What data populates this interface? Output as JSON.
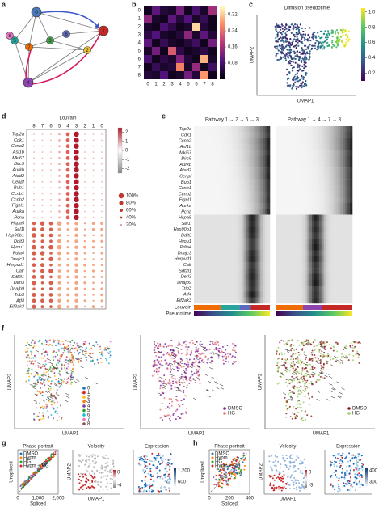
{
  "a": {
    "letter": "a",
    "nodes": [
      "0",
      "1",
      "2",
      "3",
      "4",
      "5",
      "6",
      "7",
      "8"
    ]
  },
  "b": {
    "letter": "b",
    "rows": [
      "0",
      "1",
      "2",
      "3",
      "4",
      "5",
      "6",
      "7",
      "8"
    ],
    "cols": [
      "0",
      "1",
      "2",
      "3",
      "4",
      "5",
      "6",
      "7",
      "8"
    ],
    "matrix": [
      [
        0.02,
        0.1,
        0.04,
        0.03,
        0.12,
        0.02,
        0.08,
        0.03,
        0.16
      ],
      [
        0.14,
        0.03,
        0.02,
        0.1,
        0.04,
        0.09,
        0.03,
        0.06,
        0.02
      ],
      [
        0.03,
        0.02,
        0.08,
        0.05,
        0.02,
        0.03,
        0.33,
        0.04,
        0.02
      ],
      [
        0.05,
        0.09,
        0.03,
        0.02,
        0.04,
        0.14,
        0.03,
        0.1,
        0.04
      ],
      [
        0.1,
        0.02,
        0.06,
        0.03,
        0.02,
        0.04,
        0.07,
        0.02,
        0.12
      ],
      [
        0.03,
        0.12,
        0.02,
        0.22,
        0.05,
        0.02,
        0.03,
        0.05,
        0.02
      ],
      [
        0.08,
        0.02,
        0.05,
        0.03,
        0.13,
        0.04,
        0.02,
        0.3,
        0.03
      ],
      [
        0.02,
        0.06,
        0.03,
        0.04,
        0.26,
        0.03,
        0.15,
        0.02,
        0.07
      ],
      [
        0.04,
        0.03,
        0.09,
        0.02,
        0.03,
        0.12,
        0.04,
        0.28,
        0.02
      ]
    ],
    "colorbar": {
      "range": [
        0,
        0.36
      ],
      "ticks": [
        0.08,
        0.16,
        0.24,
        0.32
      ]
    }
  },
  "c": {
    "letter": "c",
    "title": "Diffusion pseudotime",
    "xlabel": "UMAP1",
    "ylabel": "UMAP2",
    "colorbar": {
      "range": [
        0.1,
        1.05
      ],
      "ticks": [
        0.2,
        0.4,
        0.6,
        0.8,
        {
          "value": 1,
          "label": "1.0"
        }
      ]
    }
  },
  "d": {
    "letter": "d",
    "header": "Louvain",
    "columns": [
      "8",
      "7",
      "6",
      "5",
      "4",
      "3",
      "2",
      "1",
      "0"
    ],
    "genes": [
      "Top2a",
      "Cdk1",
      "Ccna2",
      "Asf1b",
      "Mki67",
      "Birc5",
      "Aurkb",
      "Atad2",
      "Cenpf",
      "Bub1",
      "Ccnb1",
      "Ccnb2",
      "Fignl1",
      "Aurka",
      "Pcna",
      "Hspa5",
      "Sel1l",
      "Hsp90b1",
      "Ddit3",
      "Hyou1",
      "Pdia4",
      "Dnajc3",
      "Herpud1",
      "Calr",
      "Sdf2l1",
      "Derl3",
      "Dnajb9",
      "Trib3",
      "Atf4",
      "Eif2ak3"
    ],
    "colorbar": {
      "range": [
        -2.5,
        2.5
      ],
      "ticks": [
        2,
        1,
        0,
        -1,
        -2
      ]
    },
    "size_legend": [
      "100%",
      "80%",
      "60%",
      "40%",
      "20%"
    ]
  },
  "e": {
    "letter": "e",
    "pathways": [
      "Pathway 1 → 2 → 5 → 3",
      "Pathway 1 → 4 → 7 → 3"
    ],
    "genes": [
      "Top2a",
      "Cdk1",
      "Ccna2",
      "Asf1b",
      "Mki67",
      "Birc5",
      "Aurkb",
      "Atad2",
      "Cenpf",
      "Bub1",
      "Ccnb1",
      "Ccnb2",
      "Fignl1",
      "Aurka",
      "Pcna",
      "Hspa5",
      "Sel1l",
      "Hsp90b1",
      "Ddit3",
      "Hyou1",
      "Pdia4",
      "Dnajc3",
      "Herpud1",
      "Calr",
      "Sdf2l1",
      "Derl3",
      "Dnajb9",
      "Trib3",
      "Atf4",
      "Eif2ak3"
    ],
    "tracks": [
      "Louvain",
      "Pseudotime"
    ]
  },
  "f": {
    "letter": "f",
    "xlabel": "UMAP1",
    "ylabel": "UMAP2",
    "clusters": [
      "0",
      "1",
      "2",
      "3",
      "4",
      "5",
      "6",
      "7",
      "8"
    ],
    "conditions": [
      "DMSO",
      "HG"
    ]
  },
  "g": {
    "letter": "g",
    "phase": {
      "title": "Phase portrait",
      "xlabel": "Spliced",
      "ylabel": "Unspliced",
      "xticks": [
        "0",
        "1,000",
        "2,000"
      ],
      "legend": [
        "DMSO",
        "Hypm",
        "HG",
        "Hypm + HG"
      ]
    },
    "velocity": {
      "title": "Velocity",
      "xlabel": "UMAP1",
      "ylabel": "UMAP2",
      "colorbar": [
        "0",
        "-4"
      ]
    },
    "expression": {
      "title": "Expression",
      "colorbar": [
        "1,200",
        "600"
      ]
    }
  },
  "h": {
    "letter": "h",
    "phase": {
      "title": "Phase portrait",
      "xlabel": "Spliced",
      "ylabel": "Unspliced",
      "xticks": [
        "0",
        "200",
        "400"
      ],
      "legend": [
        "DMSO",
        "Hypm",
        "HG",
        "Hypm + HG"
      ]
    },
    "velocity": {
      "title": "Velocity",
      "xlabel": "UMAP1",
      "ylabel": "UMAP2",
      "colorbar": [
        "0",
        "-3"
      ]
    },
    "expression": {
      "title": "Expression",
      "colorbar": [
        "400",
        "300"
      ]
    }
  }
}
